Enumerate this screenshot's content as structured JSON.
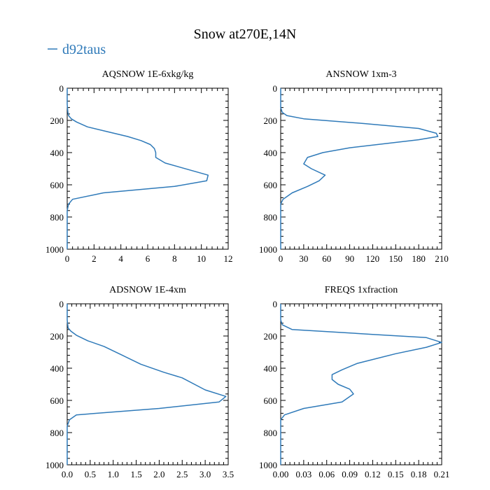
{
  "figure": {
    "title": "Snow at270E,14N",
    "legend": {
      "label": "d92taus",
      "color": "#2f7ab9"
    }
  },
  "chart_data": [
    {
      "type": "line",
      "title": "AQSNOW  1E-6xkg/kg",
      "xlim": [
        0,
        12
      ],
      "ylim": [
        1000,
        0
      ],
      "xticks": [
        0,
        2,
        4,
        6,
        8,
        10,
        12
      ],
      "xtick_labels": [
        "0",
        "2",
        "4",
        "6",
        "8",
        "10",
        "12"
      ],
      "yticks": [
        0,
        200,
        400,
        600,
        800,
        1000
      ],
      "ytick_labels": [
        "0",
        "200",
        "400",
        "600",
        "800",
        "1000"
      ],
      "series": [
        {
          "name": "d92taus",
          "x": [
            0,
            0,
            0.05,
            0.1,
            0.3,
            0.7,
            1.5,
            3,
            4.5,
            5.5,
            6.2,
            6.5,
            6.6,
            6.6,
            7.3,
            10.5,
            10.4,
            8,
            2.7,
            0.4,
            0.1,
            0,
            0,
            0
          ],
          "y": [
            0,
            100,
            150,
            170,
            190,
            210,
            240,
            270,
            300,
            325,
            350,
            375,
            400,
            430,
            465,
            540,
            575,
            610,
            650,
            690,
            720,
            760,
            850,
            1000
          ]
        }
      ]
    },
    {
      "type": "line",
      "title": "ANSNOW  1xm-3",
      "xlim": [
        0,
        210
      ],
      "ylim": [
        1000,
        0
      ],
      "xticks": [
        0,
        30,
        60,
        90,
        120,
        150,
        180,
        210
      ],
      "xtick_labels": [
        "0",
        "30",
        "60",
        "90",
        "120",
        "150",
        "180",
        "210"
      ],
      "yticks": [
        0,
        200,
        400,
        600,
        800,
        1000
      ],
      "ytick_labels": [
        "0",
        "200",
        "400",
        "600",
        "800",
        "1000"
      ],
      "series": [
        {
          "name": "d92taus",
          "x": [
            0,
            0,
            2,
            8,
            30,
            110,
            180,
            203,
            205,
            180,
            90,
            55,
            35,
            30,
            40,
            58,
            50,
            35,
            15,
            3,
            0,
            0,
            0
          ],
          "y": [
            0,
            120,
            150,
            170,
            190,
            220,
            250,
            280,
            300,
            320,
            370,
            400,
            430,
            470,
            500,
            540,
            575,
            610,
            650,
            690,
            720,
            850,
            1000
          ]
        }
      ]
    },
    {
      "type": "line",
      "title": "ADSNOW  1E-4xm",
      "xlim": [
        0,
        3.5
      ],
      "ylim": [
        1000,
        0
      ],
      "xticks": [
        0,
        0.5,
        1,
        1.5,
        2,
        2.5,
        3,
        3.5
      ],
      "xtick_labels": [
        "0.0",
        "0.5",
        "1.0",
        "1.5",
        "2.0",
        "2.5",
        "3.0",
        "3.5"
      ],
      "yticks": [
        0,
        200,
        400,
        600,
        800,
        1000
      ],
      "ytick_labels": [
        "0",
        "200",
        "400",
        "600",
        "800",
        "1000"
      ],
      "series": [
        {
          "name": "d92taus",
          "x": [
            0,
            0,
            0.02,
            0.08,
            0.2,
            0.45,
            0.8,
            1.2,
            1.6,
            2.1,
            2.5,
            3,
            3.45,
            3.3,
            2.0,
            0.2,
            0.05,
            0,
            0,
            0
          ],
          "y": [
            0,
            100,
            150,
            170,
            195,
            230,
            265,
            320,
            375,
            425,
            460,
            535,
            575,
            610,
            650,
            690,
            720,
            760,
            850,
            1000
          ]
        }
      ]
    },
    {
      "type": "line",
      "title": "FREQS  1xfraction",
      "xlim": [
        0,
        0.21
      ],
      "ylim": [
        1000,
        0
      ],
      "xticks": [
        0,
        0.03,
        0.06,
        0.09,
        0.12,
        0.15,
        0.18,
        0.21
      ],
      "xtick_labels": [
        "0.00",
        "0.03",
        "0.06",
        "0.09",
        "0.12",
        "0.15",
        "0.18",
        "0.21"
      ],
      "yticks": [
        0,
        200,
        400,
        600,
        800,
        1000
      ],
      "ytick_labels": [
        "0",
        "200",
        "400",
        "600",
        "800",
        "1000"
      ],
      "series": [
        {
          "name": "d92taus",
          "x": [
            0,
            0,
            0.002,
            0.015,
            0.12,
            0.19,
            0.21,
            0.19,
            0.15,
            0.1,
            0.08,
            0.067,
            0.067,
            0.075,
            0.09,
            0.095,
            0.08,
            0.03,
            0.005,
            0,
            0,
            0
          ],
          "y": [
            0,
            100,
            130,
            160,
            190,
            210,
            240,
            270,
            310,
            370,
            410,
            440,
            470,
            500,
            530,
            560,
            610,
            650,
            690,
            720,
            850,
            1000
          ]
        }
      ]
    }
  ]
}
